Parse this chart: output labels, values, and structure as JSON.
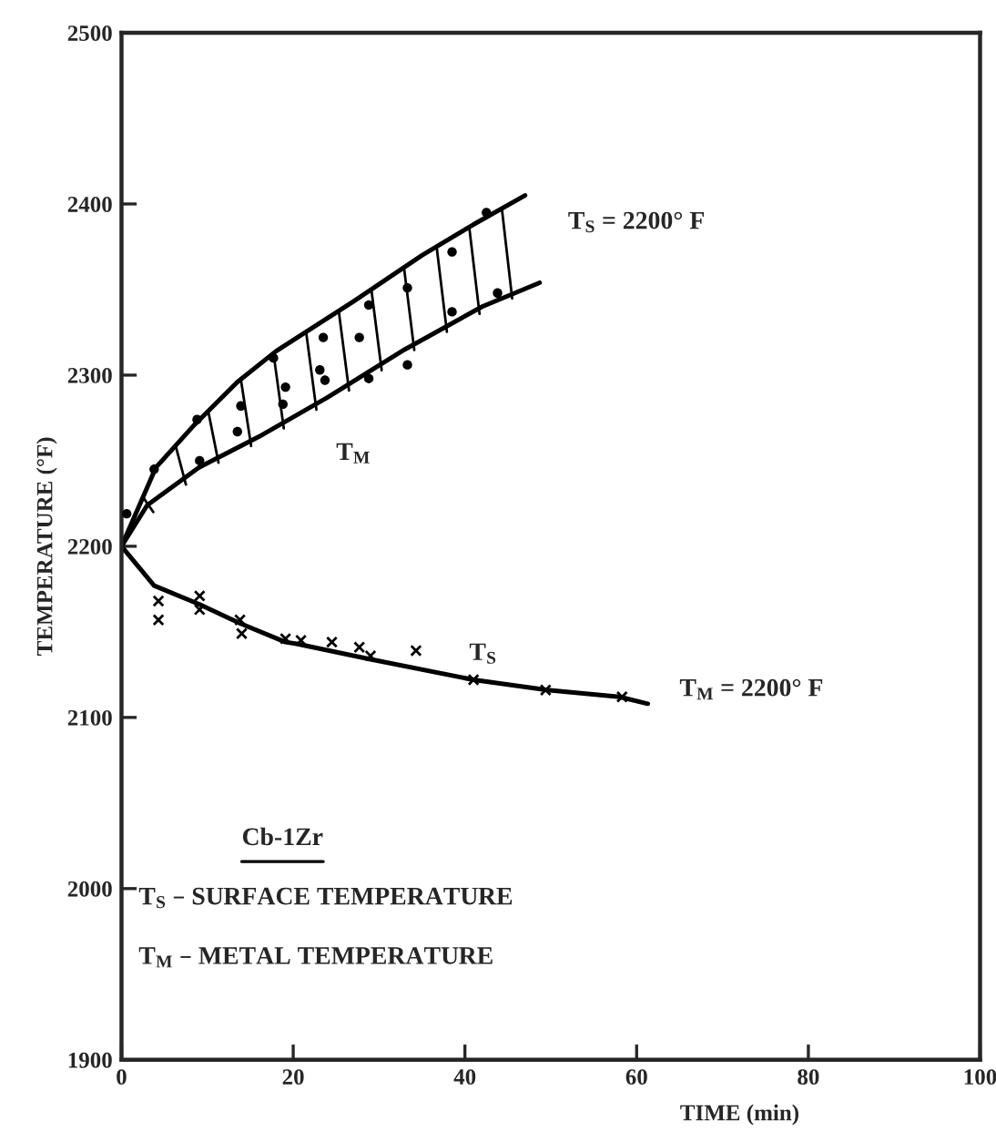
{
  "chart_data": {
    "type": "line",
    "xlabel": "TIME (min)",
    "ylabel": "TEMPERATURE (°F)",
    "xlim": [
      0,
      100
    ],
    "xticks": [
      0,
      20,
      40,
      60,
      80,
      100
    ],
    "ylim": [
      1900,
      2500
    ],
    "yticks": [
      1900,
      2000,
      2100,
      2200,
      2300,
      2400,
      2500
    ],
    "grid": false,
    "legend": false,
    "series": [
      {
        "color": "#000000",
        "marker": "none",
        "x": [
          0,
          4,
          8.5,
          13.5,
          18,
          27,
          35,
          41,
          47
        ],
        "values": [
          2200,
          2246,
          2271,
          2296,
          2314,
          2343,
          2370,
          2388,
          2405
        ]
      },
      {
        "color": "#000000",
        "marker": "none",
        "x": [
          0,
          3,
          9,
          16,
          24,
          33,
          42,
          48.7
        ],
        "values": [
          2200,
          2224,
          2246,
          2264,
          2287,
          2315,
          2340,
          2354
        ]
      },
      {
        "color": "#000000",
        "marker": "none",
        "x": [
          0,
          3.8,
          9.1,
          13.8,
          19.1,
          20.4,
          29,
          41,
          49.6,
          58,
          61.3
        ],
        "values": [
          2200,
          2177,
          2166,
          2155,
          2144,
          2143,
          2134,
          2122,
          2116,
          2112,
          2108
        ]
      },
      {
        "type": "scatter",
        "color": "#000000",
        "marker": "cross",
        "x": [
          4.3,
          4.3,
          9.1,
          9.1,
          13.8,
          14,
          19.1,
          20.9,
          24.5,
          27.7,
          29,
          34.3,
          41,
          49.4,
          58.3
        ],
        "values": [
          2168,
          2157,
          2171,
          2163,
          2157,
          2149,
          2146,
          2145,
          2144,
          2141,
          2136,
          2139,
          2122,
          2116,
          2112
        ]
      },
      {
        "type": "scatter",
        "color": "#000000",
        "marker": "circle",
        "x": [
          0.6,
          3.8,
          8.8,
          9.1,
          13.5,
          13.9,
          17.7,
          18.8,
          19.1,
          23.1,
          23.5,
          23.7,
          27.7,
          28.8,
          28.8,
          33.3,
          33.3,
          38.5,
          38.5,
          42.5,
          43.8
        ],
        "values": [
          2219,
          2245,
          2274,
          2250,
          2267,
          2282,
          2310,
          2283,
          2293,
          2303,
          2322,
          2297,
          2322,
          2341,
          2298,
          2306,
          2351,
          2372,
          2337,
          2395,
          2348
        ]
      }
    ],
    "annotations": [
      "T$_{S}$ = 2200° F",
      "T$_{M}$",
      "T$_{S}$",
      "T$_{M}$ = 2200° F",
      "Cb-1Zr",
      "T$_{S}$ – SURFACE TEMPERATURE",
      "T$_{M}$ – METAL TEMPERATURE"
    ]
  }
}
